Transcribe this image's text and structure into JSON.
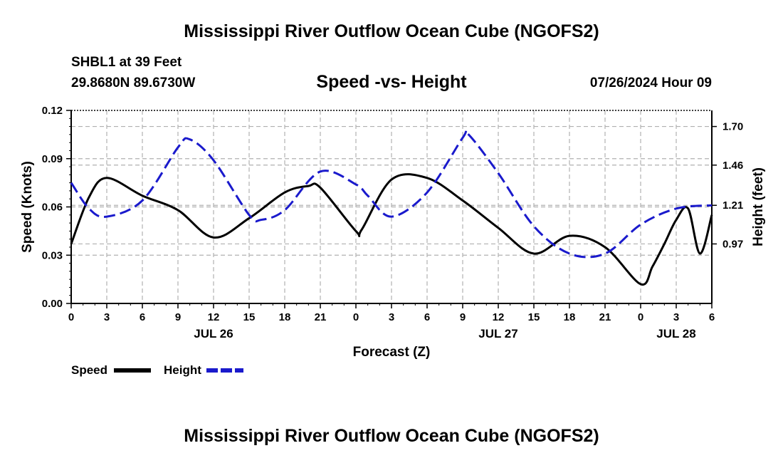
{
  "title": "Mississippi River Outflow Ocean Cube (NGOFS2)",
  "footer_title": "Mississippi River Outflow Ocean Cube (NGOFS2)",
  "station": {
    "name": "SHBL1 at 39 Feet",
    "coords": "29.8680N  89.6730W"
  },
  "date_label": "07/26/2024 Hour 09",
  "colors": {
    "speed": "#000000",
    "height": "#1a1acc",
    "grid": "#b0b0b0"
  },
  "chart_data": {
    "type": "line",
    "title": "Speed -vs- Height",
    "xlabel": "Forecast (Z)",
    "ylabel": "Speed (Knots)",
    "y2label": "Height (feet)",
    "xlim": [
      0,
      54
    ],
    "ylim": [
      0,
      0.12
    ],
    "y2lim": [
      0.6,
      1.8
    ],
    "x_ticks": [
      0,
      3,
      6,
      9,
      12,
      15,
      18,
      21,
      24,
      27,
      30,
      33,
      36,
      39,
      42,
      45,
      48,
      51,
      54
    ],
    "x_tick_labels": [
      "0",
      "3",
      "6",
      "9",
      "12",
      "15",
      "18",
      "21",
      "0",
      "3",
      "6",
      "9",
      "12",
      "15",
      "18",
      "21",
      "0",
      "3",
      "6"
    ],
    "y_ticks": [
      0,
      0.03,
      0.06,
      0.09,
      0.12
    ],
    "y_tick_labels": [
      "0.00",
      "0.03",
      "0.06",
      "0.09",
      "0.12"
    ],
    "y2_ticks": [
      0.97,
      1.21,
      1.46,
      1.7
    ],
    "y2_tick_labels": [
      "0.97",
      "1.21",
      "1.46",
      "1.70"
    ],
    "date_labels": [
      {
        "x": 12,
        "label": "JUL 26"
      },
      {
        "x": 36,
        "label": "JUL 27"
      },
      {
        "x": 51,
        "label": "JUL 28"
      }
    ],
    "legend": [
      {
        "name": "Speed",
        "style": "solid"
      },
      {
        "name": "Height",
        "style": "dashed"
      }
    ],
    "series": [
      {
        "name": "Speed",
        "axis": "left",
        "x": [
          0,
          1.5,
          3,
          6,
          9,
          12,
          15,
          18,
          20,
          21,
          24,
          24.5,
          27,
          30,
          33,
          36,
          39,
          42,
          45,
          48,
          49,
          50,
          51,
          52,
          53,
          54
        ],
        "values": [
          0.037,
          0.066,
          0.078,
          0.067,
          0.058,
          0.041,
          0.053,
          0.069,
          0.073,
          0.072,
          0.045,
          0.046,
          0.077,
          0.078,
          0.064,
          0.047,
          0.031,
          0.042,
          0.035,
          0.012,
          0.023,
          0.037,
          0.052,
          0.059,
          0.031,
          0.055
        ]
      },
      {
        "name": "Height",
        "axis": "right",
        "x": [
          0,
          1.5,
          3,
          6,
          9,
          10,
          12,
          15,
          16,
          18,
          21,
          24,
          25,
          27,
          30,
          33,
          33.5,
          36,
          39,
          42,
          45,
          48,
          51,
          54
        ],
        "values": [
          1.35,
          1.19,
          1.14,
          1.24,
          1.57,
          1.62,
          1.49,
          1.15,
          1.12,
          1.18,
          1.42,
          1.34,
          1.27,
          1.14,
          1.29,
          1.63,
          1.65,
          1.41,
          1.08,
          0.91,
          0.91,
          1.09,
          1.19,
          1.21
        ]
      }
    ]
  }
}
